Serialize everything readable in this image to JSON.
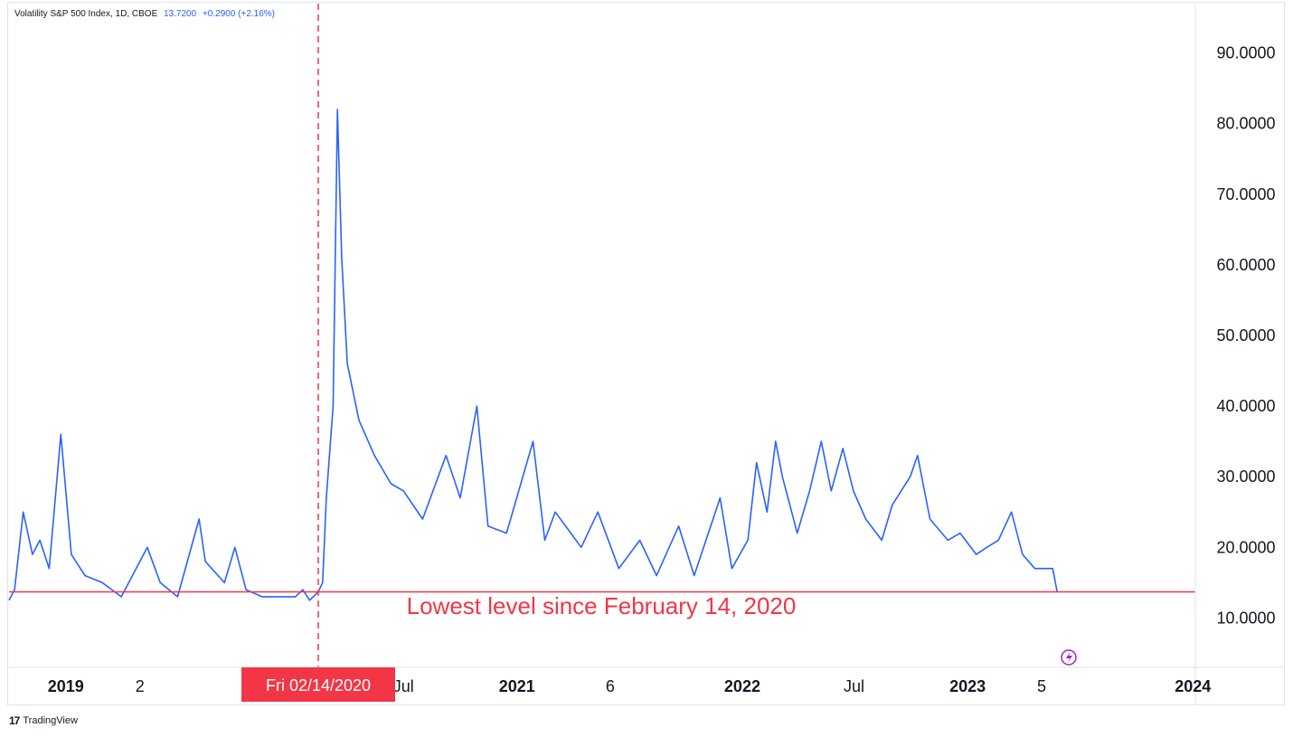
{
  "header": {
    "symbol": "Volatility S&P 500 Index, 1D, CBOE",
    "last_value": "13.7200",
    "change": "+0.2900 (+2.16%)"
  },
  "footer": {
    "brand_logo": "17",
    "brand_name": "TradingView"
  },
  "colors": {
    "series": "#2962ff",
    "reference_line": "#f23645",
    "annotation": "#f23645",
    "axis_text": "#131722",
    "crosshair_badge_bg": "#f23645",
    "crosshair_badge_text": "#ffffff",
    "alert_icon": "#9c27b0"
  },
  "chart_data": {
    "type": "line",
    "title": "Volatility S&P 500 Index, 1D, CBOE",
    "ylim": [
      3.0,
      97.0
    ],
    "xlim": [
      "2018-10-01",
      "2024-01-05"
    ],
    "y_ticks": [
      {
        "value": 90,
        "label": "90.0000"
      },
      {
        "value": 80,
        "label": "80.0000"
      },
      {
        "value": 70,
        "label": "70.0000"
      },
      {
        "value": 60,
        "label": "60.0000"
      },
      {
        "value": 50,
        "label": "50.0000"
      },
      {
        "value": 40,
        "label": "40.0000"
      },
      {
        "value": 30,
        "label": "30.0000"
      },
      {
        "value": 20,
        "label": "20.0000"
      },
      {
        "value": 10,
        "label": "10.0000"
      }
    ],
    "x_ticks": [
      {
        "date": "2019-01-01",
        "label": "2019",
        "bold": true
      },
      {
        "date": "2019-05-01",
        "label": "2",
        "bold": false
      },
      {
        "date": "2020-07-01",
        "label": "Jul",
        "bold": false
      },
      {
        "date": "2021-01-01",
        "label": "2021",
        "bold": true
      },
      {
        "date": "2021-06-01",
        "label": "6",
        "bold": false
      },
      {
        "date": "2022-01-01",
        "label": "2022",
        "bold": true
      },
      {
        "date": "2022-07-01",
        "label": "Jul",
        "bold": false
      },
      {
        "date": "2023-01-01",
        "label": "2023",
        "bold": true
      },
      {
        "date": "2023-05-01",
        "label": "5",
        "bold": false
      },
      {
        "date": "2024-01-01",
        "label": "2024",
        "bold": true
      }
    ],
    "crosshair": {
      "date": "2020-02-14",
      "label": "Fri 02/14/2020"
    },
    "reference_line": {
      "value": 13.7
    },
    "annotation": "Lowest level since February 14, 2020",
    "grid": false,
    "legend": "none",
    "series": [
      {
        "x": [
          "2018-10-01",
          "2018-10-10",
          "2018-10-24",
          "2018-11-08",
          "2018-11-20",
          "2018-12-05",
          "2018-12-24",
          "2019-01-10",
          "2019-02-01",
          "2019-03-01",
          "2019-04-01",
          "2019-05-13",
          "2019-06-03",
          "2019-07-01",
          "2019-08-05",
          "2019-08-15",
          "2019-09-15",
          "2019-10-02",
          "2019-10-20",
          "2019-11-15",
          "2019-12-15",
          "2020-01-08",
          "2020-01-20",
          "2020-01-31",
          "2020-02-14",
          "2020-02-21",
          "2020-02-27",
          "2020-03-09",
          "2020-03-16",
          "2020-03-23",
          "2020-04-01",
          "2020-04-20",
          "2020-05-15",
          "2020-06-11",
          "2020-07-01",
          "2020-08-01",
          "2020-09-08",
          "2020-10-01",
          "2020-10-28",
          "2020-11-15",
          "2020-12-15",
          "2021-01-27",
          "2021-02-15",
          "2021-03-04",
          "2021-04-15",
          "2021-05-12",
          "2021-06-15",
          "2021-07-19",
          "2021-08-15",
          "2021-09-20",
          "2021-10-15",
          "2021-11-26",
          "2021-12-15",
          "2022-01-10",
          "2022-01-24",
          "2022-02-10",
          "2022-02-24",
          "2022-03-07",
          "2022-03-31",
          "2022-04-20",
          "2022-05-09",
          "2022-05-25",
          "2022-06-13",
          "2022-06-30",
          "2022-07-20",
          "2022-08-15",
          "2022-09-01",
          "2022-09-30",
          "2022-10-12",
          "2022-11-01",
          "2022-11-30",
          "2022-12-20",
          "2023-01-15",
          "2023-02-01",
          "2023-02-20",
          "2023-03-13",
          "2023-03-31",
          "2023-04-20",
          "2023-05-10",
          "2023-05-19",
          "2023-05-26"
        ],
        "y": [
          12.5,
          14,
          25,
          19,
          21,
          17,
          36,
          19,
          16,
          15,
          13,
          20,
          15,
          13,
          24,
          18,
          15,
          20,
          14,
          13,
          13,
          13,
          14,
          12.5,
          13.7,
          15,
          27,
          40,
          82,
          61,
          46,
          38,
          33,
          29,
          28,
          24,
          33,
          27,
          40,
          23,
          22,
          35,
          21,
          25,
          20,
          25,
          17,
          21,
          16,
          23,
          16,
          27,
          17,
          21,
          32,
          25,
          35,
          30,
          22,
          28,
          35,
          28,
          34,
          28,
          24,
          21,
          26,
          30,
          33,
          24,
          21,
          22,
          19,
          20,
          21,
          25,
          19,
          17,
          17,
          17,
          13.7
        ]
      }
    ]
  }
}
